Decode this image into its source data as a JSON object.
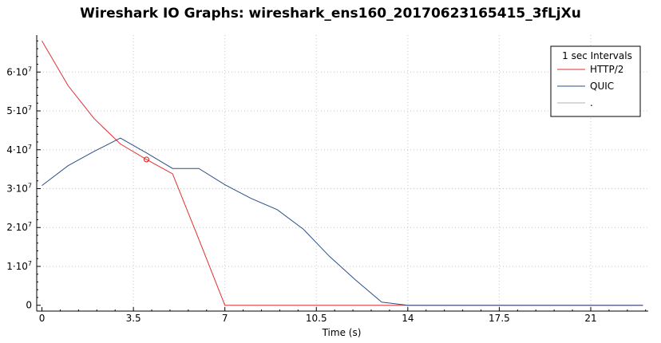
{
  "chart_data": {
    "type": "line",
    "title": "Wireshark IO Graphs: wireshark_ens160_20170623165415_3fLjXu",
    "xlabel": "Time (s)",
    "ylabel": "",
    "xlim": [
      -0.2,
      23.2
    ],
    "ylim": [
      -1500000,
      69500000
    ],
    "x_ticks": [
      {
        "value": 0,
        "label": "0"
      },
      {
        "value": 3.5,
        "label": "3.5"
      },
      {
        "value": 7,
        "label": "7"
      },
      {
        "value": 10.5,
        "label": "10.5"
      },
      {
        "value": 14,
        "label": "14"
      },
      {
        "value": 17.5,
        "label": "17.5"
      },
      {
        "value": 21,
        "label": "21"
      }
    ],
    "y_ticks": [
      {
        "value": 0,
        "base": "0",
        "exp": ""
      },
      {
        "value": 10000000,
        "base": "1·10",
        "exp": "7"
      },
      {
        "value": 20000000,
        "base": "2·10",
        "exp": "7"
      },
      {
        "value": 30000000,
        "base": "3·10",
        "exp": "7"
      },
      {
        "value": 40000000,
        "base": "4·10",
        "exp": "7"
      },
      {
        "value": 50000000,
        "base": "5·10",
        "exp": "7"
      },
      {
        "value": 60000000,
        "base": "6·10",
        "exp": "7"
      }
    ],
    "grid": true,
    "legend_position": "top-right",
    "legend_title": "1 sec Intervals",
    "series": [
      {
        "name": "HTTP/2",
        "color": "#e03030",
        "x": [
          0,
          1,
          2,
          3,
          4,
          5,
          6,
          7,
          8,
          9,
          10,
          11,
          12,
          13,
          14,
          15,
          16,
          17,
          18,
          19,
          20,
          21,
          22,
          23
        ],
        "values": [
          68000000,
          56500000,
          48000000,
          41500000,
          37500000,
          33800000,
          17000000,
          0,
          0,
          0,
          0,
          0,
          0,
          0,
          0,
          0,
          0,
          0,
          0,
          0,
          0,
          0,
          0,
          0
        ],
        "marker": {
          "x": 4,
          "y": 37500000
        }
      },
      {
        "name": "QUIC",
        "color": "#2b4f87",
        "x": [
          0,
          1,
          2,
          3,
          4,
          5,
          6,
          7,
          8,
          9,
          10,
          11,
          12,
          13,
          14,
          15,
          16,
          17,
          18,
          19,
          20,
          21,
          22,
          23
        ],
        "values": [
          30800000,
          35900000,
          39600000,
          43000000,
          39200000,
          35200000,
          35200000,
          31000000,
          27500000,
          24600000,
          19600000,
          12600000,
          6500000,
          800000,
          0,
          0,
          0,
          0,
          0,
          0,
          0,
          0,
          0,
          0
        ]
      },
      {
        "name": ".",
        "color": "#b0b0b0",
        "x": [],
        "values": []
      }
    ]
  }
}
